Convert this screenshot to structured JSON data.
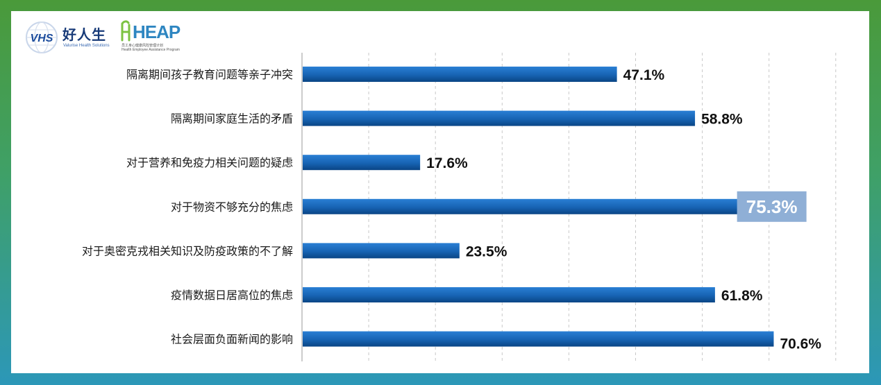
{
  "logos": {
    "vhs": {
      "badge_text": "VHS",
      "name_cn": "好人生",
      "name_en": "Valurise Health Solutions"
    },
    "heap": {
      "word": "HEAP",
      "name_cn": "员工身心健康风险管理计划",
      "name_en": "Health Employee Assistance Program"
    }
  },
  "colors": {
    "bar_top": "#1f6fc5",
    "bar_bottom": "#0b4a8f",
    "highlight_label_bg": "#8fafd6",
    "gridline": "#c8c8c8",
    "frame_green": "#4a9a3a",
    "frame_blue": "#2c97b8"
  },
  "chart_data": {
    "type": "bar",
    "orientation": "horizontal",
    "categories": [
      "隔离期间孩子教育问题等亲子冲突",
      "隔离期间家庭生活的矛盾",
      "对于营养和免疫力相关问题的疑虑",
      "对于物资不够充分的焦虑",
      "对于奥密克戎相关知识及防疫政策的不了解",
      "疫情数据日居高位的焦虑",
      "社会层面负面新闻的影响"
    ],
    "values": [
      47.1,
      58.8,
      17.6,
      75.3,
      23.5,
      61.8,
      70.6
    ],
    "value_labels": [
      "47.1%",
      "58.8%",
      "17.6%",
      "75.3%",
      "23.5%",
      "61.8%",
      "70.6%"
    ],
    "highlight_index": 3,
    "xlim": [
      0,
      80
    ],
    "grid": true,
    "title": "",
    "xlabel": "",
    "ylabel": ""
  }
}
